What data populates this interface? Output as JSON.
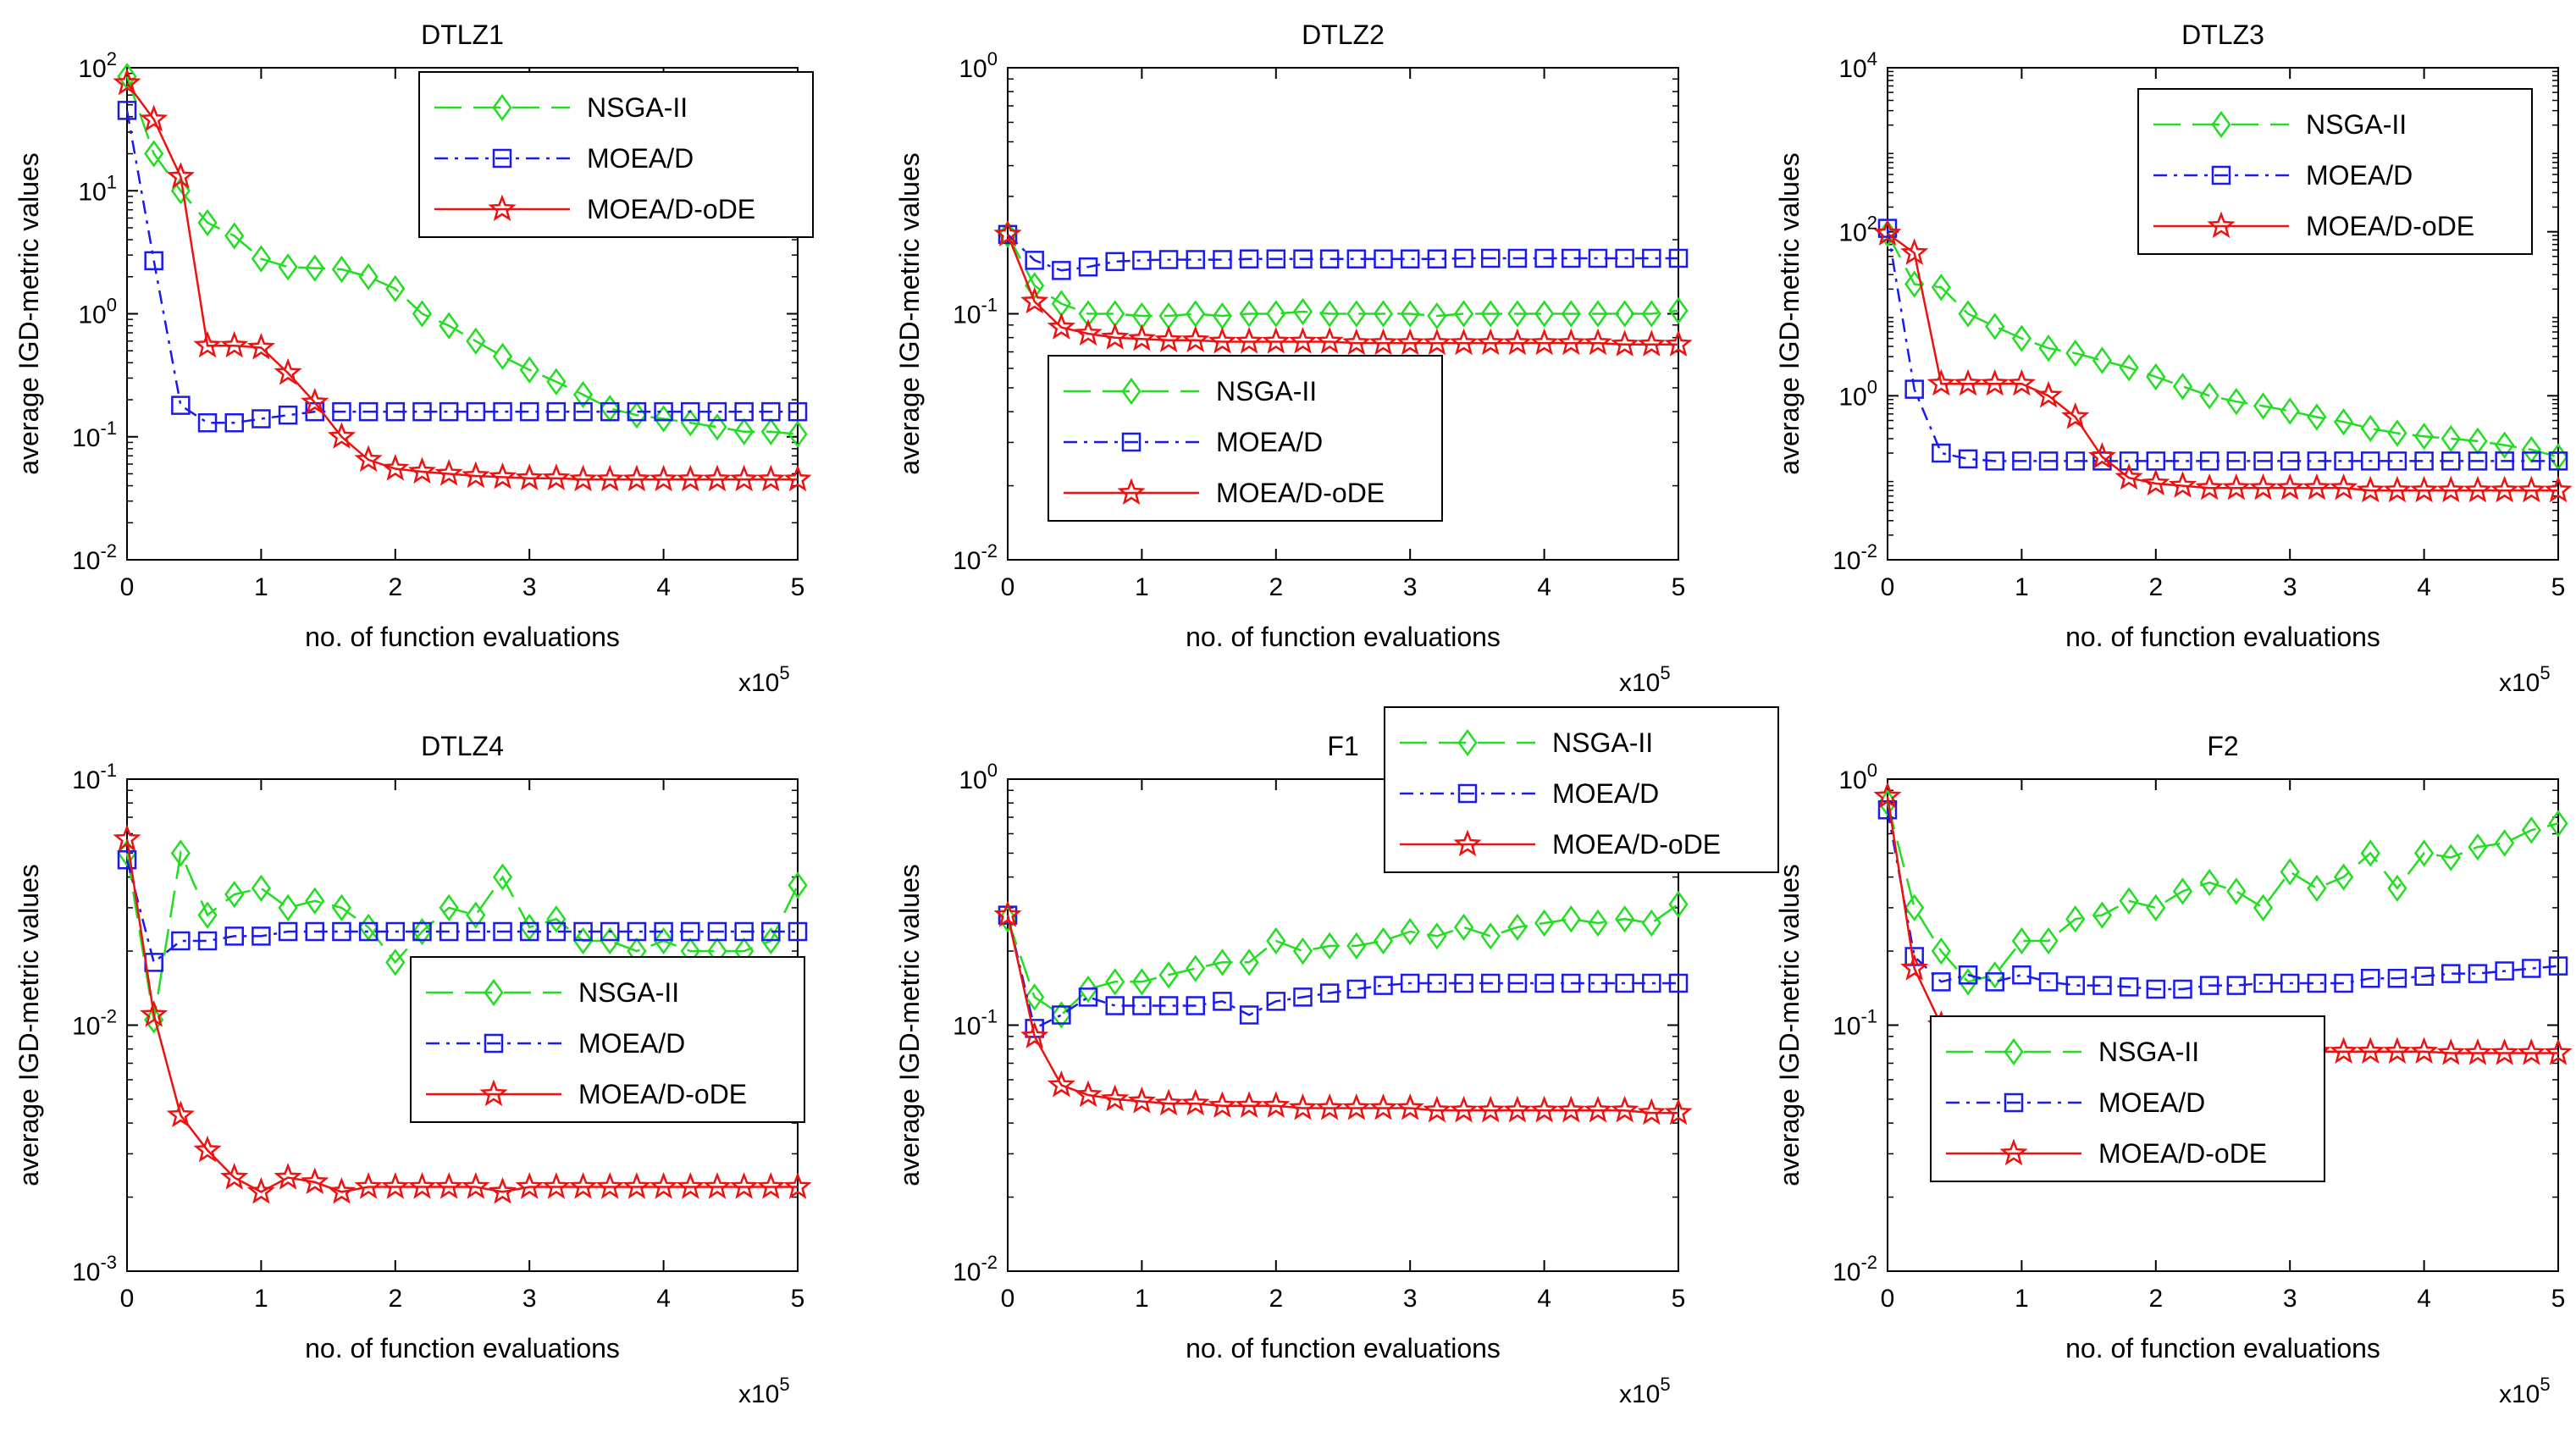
{
  "figure": {
    "colors": {
      "NSGA-II": "#22dd22",
      "MOEA/D": "#1a1aee",
      "MOEA/D-oDE": "#ee1111"
    },
    "legend_labels": [
      "NSGA-II",
      "MOEA/D",
      "MOEA/D-oDE"
    ],
    "x_ticks": [
      "0",
      "1",
      "2",
      "3",
      "4",
      "5"
    ],
    "x_multiplier_base": "x10",
    "x_multiplier_exp": "5"
  },
  "chart_data": [
    {
      "type": "line",
      "title": "DTLZ1",
      "xlabel": "no. of function evaluations",
      "ylabel": "average IGD-metric values",
      "xlim": [
        0,
        5
      ],
      "ylim": [
        0.01,
        100
      ],
      "yscale": "log",
      "y_tick_exponents": [
        "2",
        "1",
        "0",
        "-1",
        "-2"
      ],
      "legend_position": "top-right",
      "x": [
        0,
        0.2,
        0.4,
        0.6,
        0.8,
        1.0,
        1.2,
        1.4,
        1.6,
        1.8,
        2.0,
        2.2,
        2.4,
        2.6,
        2.8,
        3.0,
        3.2,
        3.4,
        3.6,
        3.8,
        4.0,
        4.2,
        4.4,
        4.6,
        4.8,
        5.0
      ],
      "series": [
        {
          "name": "NSGA-II",
          "values": [
            85,
            20,
            10,
            5.5,
            4.3,
            2.8,
            2.4,
            2.35,
            2.3,
            2.0,
            1.6,
            1.0,
            0.8,
            0.6,
            0.45,
            0.35,
            0.28,
            0.22,
            0.17,
            0.15,
            0.14,
            0.13,
            0.12,
            0.11,
            0.11,
            0.105
          ]
        },
        {
          "name": "MOEA/D",
          "values": [
            45,
            2.7,
            0.18,
            0.13,
            0.13,
            0.14,
            0.15,
            0.16,
            0.16,
            0.16,
            0.16,
            0.16,
            0.16,
            0.16,
            0.16,
            0.16,
            0.16,
            0.16,
            0.16,
            0.16,
            0.16,
            0.16,
            0.16,
            0.16,
            0.16,
            0.16
          ]
        },
        {
          "name": "MOEA/D-oDE",
          "values": [
            75,
            38,
            13,
            0.55,
            0.55,
            0.53,
            0.33,
            0.19,
            0.1,
            0.065,
            0.055,
            0.052,
            0.05,
            0.048,
            0.047,
            0.046,
            0.046,
            0.045,
            0.045,
            0.045,
            0.045,
            0.045,
            0.045,
            0.045,
            0.045,
            0.045
          ]
        }
      ]
    },
    {
      "type": "line",
      "title": "DTLZ2",
      "xlabel": "no. of function evaluations",
      "ylabel": "average IGD-metric values",
      "xlim": [
        0,
        5
      ],
      "ylim": [
        0.01,
        1
      ],
      "yscale": "log",
      "y_tick_exponents": [
        "0",
        "-1",
        "-2"
      ],
      "legend_position": "bottom-left",
      "x": [
        0,
        0.2,
        0.4,
        0.6,
        0.8,
        1.0,
        1.2,
        1.4,
        1.6,
        1.8,
        2.0,
        2.2,
        2.4,
        2.6,
        2.8,
        3.0,
        3.2,
        3.4,
        3.6,
        3.8,
        4.0,
        4.2,
        4.4,
        4.6,
        4.8,
        5.0
      ],
      "series": [
        {
          "name": "NSGA-II",
          "values": [
            0.21,
            0.13,
            0.11,
            0.1,
            0.1,
            0.098,
            0.098,
            0.1,
            0.098,
            0.1,
            0.1,
            0.102,
            0.1,
            0.1,
            0.1,
            0.1,
            0.098,
            0.1,
            0.1,
            0.1,
            0.1,
            0.1,
            0.1,
            0.1,
            0.1,
            0.103
          ]
        },
        {
          "name": "MOEA/D",
          "values": [
            0.21,
            0.165,
            0.15,
            0.155,
            0.163,
            0.165,
            0.166,
            0.166,
            0.166,
            0.167,
            0.167,
            0.167,
            0.167,
            0.167,
            0.167,
            0.167,
            0.167,
            0.168,
            0.168,
            0.168,
            0.168,
            0.168,
            0.168,
            0.168,
            0.168,
            0.168
          ]
        },
        {
          "name": "MOEA/D-oDE",
          "values": [
            0.21,
            0.112,
            0.088,
            0.083,
            0.08,
            0.079,
            0.078,
            0.078,
            0.077,
            0.077,
            0.077,
            0.077,
            0.077,
            0.076,
            0.076,
            0.076,
            0.076,
            0.076,
            0.076,
            0.076,
            0.076,
            0.076,
            0.076,
            0.075,
            0.075,
            0.075
          ]
        }
      ]
    },
    {
      "type": "line",
      "title": "DTLZ3",
      "xlabel": "no. of function evaluations",
      "ylabel": "average IGD-metric values",
      "xlim": [
        0,
        5
      ],
      "ylim": [
        0.01,
        10000
      ],
      "yscale": "log",
      "y_tick_exponents": [
        "4",
        "2",
        "0",
        "-2"
      ],
      "legend_position": "top-right",
      "x": [
        0,
        0.2,
        0.4,
        0.6,
        0.8,
        1.0,
        1.2,
        1.4,
        1.6,
        1.8,
        2.0,
        2.2,
        2.4,
        2.6,
        2.8,
        3.0,
        3.2,
        3.4,
        3.6,
        3.8,
        4.0,
        4.2,
        4.4,
        4.6,
        4.8,
        5.0
      ],
      "series": [
        {
          "name": "NSGA-II",
          "values": [
            95,
            23,
            21,
            10,
            7,
            5,
            3.8,
            3.3,
            2.7,
            2.2,
            1.7,
            1.3,
            1.0,
            0.85,
            0.75,
            0.65,
            0.55,
            0.48,
            0.4,
            0.35,
            0.32,
            0.3,
            0.28,
            0.25,
            0.22,
            0.18
          ]
        },
        {
          "name": "MOEA/D",
          "values": [
            110,
            1.2,
            0.2,
            0.17,
            0.16,
            0.16,
            0.16,
            0.16,
            0.16,
            0.16,
            0.16,
            0.16,
            0.16,
            0.16,
            0.16,
            0.16,
            0.16,
            0.16,
            0.16,
            0.16,
            0.16,
            0.16,
            0.16,
            0.16,
            0.16,
            0.16
          ]
        },
        {
          "name": "MOEA/D-oDE",
          "values": [
            95,
            55,
            1.4,
            1.4,
            1.4,
            1.4,
            1.0,
            0.55,
            0.18,
            0.1,
            0.085,
            0.08,
            0.075,
            0.075,
            0.075,
            0.075,
            0.075,
            0.075,
            0.07,
            0.07,
            0.07,
            0.07,
            0.07,
            0.07,
            0.07,
            0.07
          ]
        }
      ]
    },
    {
      "type": "line",
      "title": "DTLZ4",
      "xlabel": "no. of function evaluations",
      "ylabel": "average IGD-metric values",
      "xlim": [
        0,
        5
      ],
      "ylim": [
        0.001,
        0.1
      ],
      "yscale": "log",
      "y_tick_exponents": [
        "-1",
        "-2",
        "-3"
      ],
      "legend_position": "middle-right",
      "x": [
        0,
        0.2,
        0.4,
        0.6,
        0.8,
        1.0,
        1.2,
        1.4,
        1.6,
        1.8,
        2.0,
        2.2,
        2.4,
        2.6,
        2.8,
        3.0,
        3.2,
        3.4,
        3.6,
        3.8,
        4.0,
        4.2,
        4.4,
        4.6,
        4.8,
        5.0
      ],
      "series": [
        {
          "name": "NSGA-II",
          "values": [
            0.05,
            0.0105,
            0.05,
            0.028,
            0.034,
            0.036,
            0.03,
            0.032,
            0.03,
            0.025,
            0.018,
            0.024,
            0.03,
            0.028,
            0.04,
            0.025,
            0.027,
            0.022,
            0.022,
            0.02,
            0.022,
            0.02,
            0.02,
            0.02,
            0.022,
            0.037
          ]
        },
        {
          "name": "MOEA/D",
          "values": [
            0.047,
            0.018,
            0.022,
            0.022,
            0.023,
            0.023,
            0.024,
            0.024,
            0.024,
            0.024,
            0.024,
            0.024,
            0.024,
            0.024,
            0.024,
            0.024,
            0.024,
            0.024,
            0.024,
            0.024,
            0.024,
            0.024,
            0.024,
            0.024,
            0.024,
            0.024
          ]
        },
        {
          "name": "MOEA/D-oDE",
          "values": [
            0.057,
            0.011,
            0.0043,
            0.0031,
            0.0024,
            0.0021,
            0.0024,
            0.0023,
            0.0021,
            0.0022,
            0.0022,
            0.0022,
            0.0022,
            0.0022,
            0.0021,
            0.0022,
            0.0022,
            0.0022,
            0.0022,
            0.0022,
            0.0022,
            0.0022,
            0.0022,
            0.0022,
            0.0022,
            0.0022
          ]
        }
      ]
    },
    {
      "type": "line",
      "title": "F1",
      "xlabel": "no. of function evaluations",
      "ylabel": "average IGD-metric values",
      "xlim": [
        0,
        5
      ],
      "ylim": [
        0.01,
        1
      ],
      "yscale": "log",
      "y_tick_exponents": [
        "0",
        "-1",
        "-2"
      ],
      "legend_position": "top-right (outside)",
      "x": [
        0,
        0.2,
        0.4,
        0.6,
        0.8,
        1.0,
        1.2,
        1.4,
        1.6,
        1.8,
        2.0,
        2.2,
        2.4,
        2.6,
        2.8,
        3.0,
        3.2,
        3.4,
        3.6,
        3.8,
        4.0,
        4.2,
        4.4,
        4.6,
        4.8,
        5.0
      ],
      "series": [
        {
          "name": "NSGA-II",
          "values": [
            0.27,
            0.13,
            0.11,
            0.14,
            0.15,
            0.15,
            0.16,
            0.17,
            0.18,
            0.18,
            0.22,
            0.2,
            0.21,
            0.21,
            0.22,
            0.24,
            0.23,
            0.25,
            0.23,
            0.25,
            0.26,
            0.27,
            0.26,
            0.27,
            0.26,
            0.31
          ]
        },
        {
          "name": "MOEA/D",
          "values": [
            0.28,
            0.097,
            0.11,
            0.13,
            0.12,
            0.12,
            0.12,
            0.12,
            0.125,
            0.11,
            0.125,
            0.13,
            0.135,
            0.14,
            0.145,
            0.148,
            0.148,
            0.148,
            0.148,
            0.148,
            0.148,
            0.148,
            0.148,
            0.148,
            0.148,
            0.148
          ]
        },
        {
          "name": "MOEA/D-oDE",
          "values": [
            0.28,
            0.09,
            0.057,
            0.052,
            0.05,
            0.049,
            0.048,
            0.048,
            0.047,
            0.047,
            0.047,
            0.046,
            0.046,
            0.046,
            0.046,
            0.046,
            0.045,
            0.045,
            0.045,
            0.045,
            0.045,
            0.045,
            0.045,
            0.045,
            0.044,
            0.044
          ]
        }
      ]
    },
    {
      "type": "line",
      "title": "F2",
      "xlabel": "no. of function evaluations",
      "ylabel": "average IGD-metric values",
      "xlim": [
        0,
        5
      ],
      "ylim": [
        0.01,
        1
      ],
      "yscale": "log",
      "y_tick_exponents": [
        "0",
        "-1",
        "-2"
      ],
      "legend_position": "bottom-left",
      "x": [
        0,
        0.2,
        0.4,
        0.6,
        0.8,
        1.0,
        1.2,
        1.4,
        1.6,
        1.8,
        2.0,
        2.2,
        2.4,
        2.6,
        2.8,
        3.0,
        3.2,
        3.4,
        3.6,
        3.8,
        4.0,
        4.2,
        4.4,
        4.6,
        4.8,
        5.0
      ],
      "series": [
        {
          "name": "NSGA-II",
          "values": [
            0.8,
            0.3,
            0.2,
            0.15,
            0.16,
            0.22,
            0.22,
            0.27,
            0.28,
            0.32,
            0.3,
            0.35,
            0.38,
            0.35,
            0.3,
            0.42,
            0.36,
            0.4,
            0.5,
            0.36,
            0.5,
            0.48,
            0.53,
            0.55,
            0.62,
            0.66
          ]
        },
        {
          "name": "MOEA/D",
          "values": [
            0.75,
            0.19,
            0.15,
            0.16,
            0.15,
            0.16,
            0.15,
            0.145,
            0.145,
            0.143,
            0.14,
            0.14,
            0.145,
            0.145,
            0.148,
            0.148,
            0.148,
            0.148,
            0.155,
            0.155,
            0.158,
            0.162,
            0.162,
            0.166,
            0.17,
            0.174
          ]
        },
        {
          "name": "MOEA/D-oDE",
          "values": [
            0.85,
            0.17,
            0.1,
            0.09,
            0.088,
            0.085,
            0.083,
            0.082,
            0.081,
            0.081,
            0.08,
            0.08,
            0.08,
            0.079,
            0.079,
            0.078,
            0.078,
            0.078,
            0.078,
            0.078,
            0.078,
            0.077,
            0.077,
            0.077,
            0.077,
            0.077
          ]
        }
      ]
    }
  ]
}
